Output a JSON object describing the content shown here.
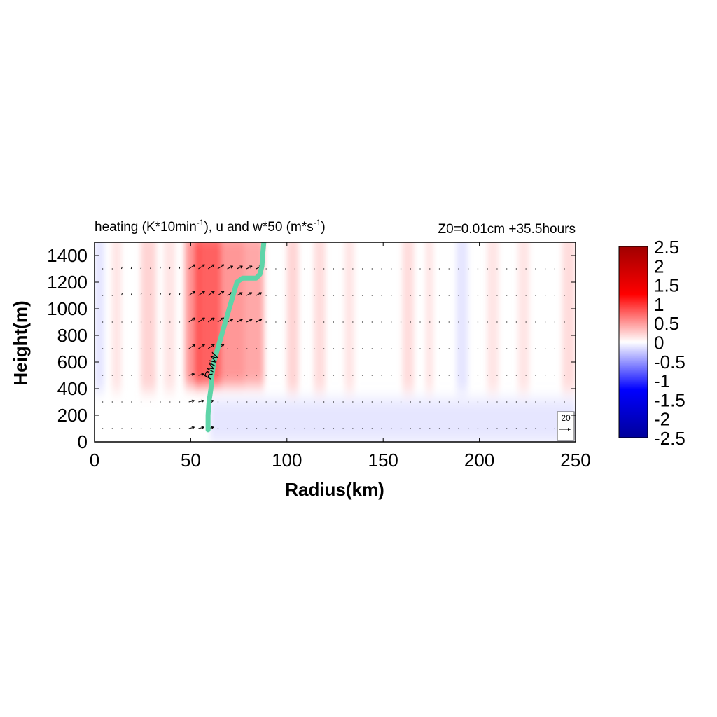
{
  "chart_data": {
    "type": "heatmap",
    "title": "heating (K*10min",
    "title_sup1": "-1",
    "title_mid": "), u and w*50 (m*s",
    "title_sup2": "-1",
    "title_end": ")",
    "subtitle": "Z0=0.01cm  +35.5hours",
    "xlabel": "Radius(km)",
    "ylabel": "Height(m)",
    "xlim": [
      0,
      250
    ],
    "ylim": [
      0,
      1500
    ],
    "xticks": [
      "0",
      "50",
      "100",
      "150",
      "200",
      "250"
    ],
    "xtick_values": [
      0,
      50,
      100,
      150,
      200,
      250
    ],
    "yticks": [
      "0",
      "200",
      "400",
      "600",
      "800",
      "1000",
      "1200",
      "1400"
    ],
    "ytick_values": [
      0,
      200,
      400,
      600,
      800,
      1000,
      1200,
      1400
    ],
    "colorbar": {
      "labels": [
        "2.5",
        "2",
        "1.5",
        "1",
        "0.5",
        "0",
        "-0.5",
        "-1",
        "-1.5",
        "-2",
        "-2.5"
      ],
      "min": -2.5,
      "max": 2.5,
      "colormap": "blue-white-red"
    },
    "heating_columns": [
      {
        "x0": 0,
        "x1": 5,
        "value": -0.3
      },
      {
        "x0": 9,
        "x1": 14,
        "value": 0.3
      },
      {
        "x0": 24,
        "x1": 32,
        "value": 0.5
      },
      {
        "x0": 36,
        "x1": 42,
        "value": 0.3
      },
      {
        "x0": 47,
        "x1": 55,
        "value": 1.2
      },
      {
        "x0": 52,
        "x1": 66,
        "value": 1.8
      },
      {
        "x0": 66,
        "x1": 78,
        "value": 1.2
      },
      {
        "x0": 78,
        "x1": 88,
        "value": 1.0
      },
      {
        "x0": 100,
        "x1": 106,
        "value": 0.5
      },
      {
        "x0": 114,
        "x1": 120,
        "value": 0.4
      },
      {
        "x0": 130,
        "x1": 135,
        "value": 0.3
      },
      {
        "x0": 160,
        "x1": 166,
        "value": 0.4
      },
      {
        "x0": 172,
        "x1": 176,
        "value": 0.3
      },
      {
        "x0": 188,
        "x1": 194,
        "value": -0.3
      },
      {
        "x0": 204,
        "x1": 210,
        "value": 0.3
      },
      {
        "x0": 220,
        "x1": 226,
        "value": 0.3
      },
      {
        "x0": 243,
        "x1": 250,
        "value": 0.4
      }
    ],
    "cooling_band": {
      "x0": 60,
      "x1": 250,
      "y0": 0,
      "y1": 320,
      "value": -0.4
    },
    "vector_levels": [
      100,
      300,
      500,
      700,
      900,
      1100,
      1300
    ],
    "vector_x_range": [
      4,
      248
    ],
    "vector_spacing_km": 5,
    "rmw": {
      "label": "RMW",
      "color": "#5fd4a8",
      "x": [
        59,
        59,
        59.5,
        60.5,
        61,
        62,
        64,
        66,
        68,
        70,
        72,
        74,
        77,
        80,
        84,
        86,
        87,
        87.5,
        88
      ],
      "y": [
        90,
        200,
        300,
        400,
        500,
        600,
        700,
        800,
        900,
        1000,
        1100,
        1200,
        1230,
        1230,
        1230,
        1260,
        1320,
        1420,
        1500
      ]
    },
    "reference_vector": {
      "label": "20"
    }
  }
}
